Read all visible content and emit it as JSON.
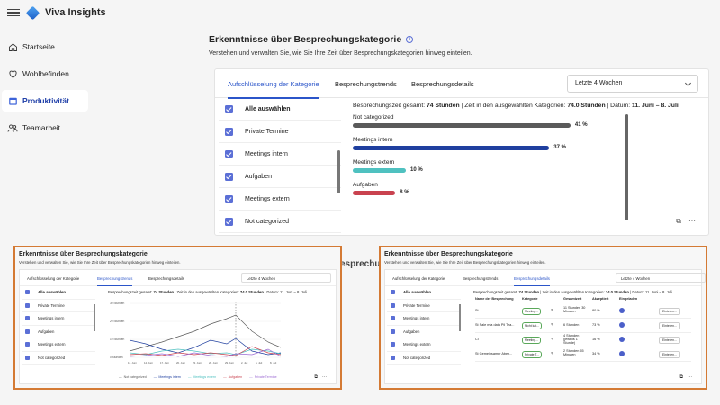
{
  "app": {
    "title": "Viva Insights"
  },
  "sidebar": {
    "items": [
      {
        "label": "Startseite",
        "icon": "home-icon",
        "active": false
      },
      {
        "label": "Wohlbefinden",
        "icon": "heart-icon",
        "active": false
      },
      {
        "label": "Produktivität",
        "icon": "calendar-icon",
        "active": true
      },
      {
        "label": "Teamarbeit",
        "icon": "people-icon",
        "active": false
      }
    ]
  },
  "main": {
    "title": "Erkenntnisse über Besprechungskategorie",
    "subtitle": "Verstehen und verwalten Sie, wie Sie Ihre Zeit über Besprechungskategorien hinweg einteilen.",
    "tabs": [
      {
        "label": "Aufschlüsselung der Kategorie",
        "active": true
      },
      {
        "label": "Besprechungstrends",
        "active": false
      },
      {
        "label": "Besprechungsdetails",
        "active": false
      }
    ],
    "period": "Letzte 4 Wochen",
    "categories": [
      "Alle auswählen",
      "Private Termine",
      "Meetings intern",
      "Aufgaben",
      "Meetings extern",
      "Not categorized"
    ],
    "summary": {
      "total_label": "Besprechungszeit gesamt:",
      "total_value": "74 Stunden",
      "selected_label": "Zeit in den ausgewählten Kategorien:",
      "selected_value": "74.0 Stunden",
      "date_label": "Datum:",
      "date_value": "11. Juni – 8. Juli"
    }
  },
  "chart_data": {
    "type": "bar",
    "orientation": "horizontal",
    "categories": [
      "Not categorized",
      "Meetings intern",
      "Meetings extern",
      "Aufgaben"
    ],
    "values": [
      41,
      37,
      10,
      8
    ],
    "value_labels": [
      "41 %",
      "37 %",
      "10 %",
      "8 %"
    ],
    "colors": [
      "#5a5a5a",
      "#1f3f9f",
      "#4fc1c0",
      "#c9424f"
    ],
    "xlim": [
      0,
      100
    ]
  },
  "overlay_label": "esprechu",
  "thumb_left": {
    "title": "Erkenntnisse über Besprechungskategorie",
    "subtitle": "Verstehen und verwalten Sie, wie Sie Ihre Zeit über Besprechungskategorien hinweg einteilen.",
    "tabs": [
      "Aufschlüsselung der Kategorie",
      "Besprechungstrends",
      "Besprechungsdetails"
    ],
    "active_tab": 1,
    "period": "Letzte 4 Wochen",
    "categories": [
      "Alle auswählen",
      "Private Termine",
      "Meetings intern",
      "Aufgaben",
      "Meetings extern",
      "Not categorized"
    ],
    "summary_a": "Besprechungszeit gesamt:",
    "summary_b": "74 Stunden",
    "summary_c": "| Zeit in den ausgewählten Kategorien:",
    "summary_d": "74.0 Stunden",
    "summary_e": "| Datum: 11. Juni – 8. Juli",
    "legend": [
      "Not categorized",
      "Meetings intern",
      "Meetings extern",
      "Aufgaben",
      "Private Termine"
    ],
    "y_ticks": [
      "30 Stunden",
      "20 Stunden",
      "10 Stunden",
      "0 Stunden"
    ],
    "x_ticks": [
      "11. Juni",
      "14. Juni",
      "17. Juni",
      "20. Juni",
      "23. Juni",
      "26. Juni",
      "29. Juni",
      "2. Juli",
      "5. Juli",
      "8. Juli"
    ]
  },
  "thumb_right": {
    "title": "Erkenntnisse über Besprechungskategorie",
    "subtitle": "Verstehen und verwalten Sie, wie Sie Ihre Zeit über Besprechungskategorien hinweg einteilen.",
    "tabs": [
      "Aufschlüsselung der Kategorie",
      "Besprechungstrends",
      "Besprechungsdetails"
    ],
    "active_tab": 2,
    "period": "Letzte 4 Wochen",
    "categories": [
      "Alle auswählen",
      "Private Termine",
      "Meetings intern",
      "Aufgaben",
      "Meetings extern",
      "Not categorized"
    ],
    "summary_a": "Besprechungszeit gesamt:",
    "summary_b": "74 Stunden",
    "summary_c": "| Zeit in den ausgewählten Kategorien:",
    "summary_d": "74.0 Stunden",
    "summary_e": "| Datum: 11. Juni – 8. Juli",
    "columns": [
      "Name der Besprechung",
      "Kategorie",
      "",
      "Gesamtzeit",
      "Akzeptiert",
      "Eingeladen"
    ],
    "rows": [
      {
        "name": "St",
        "category": "Meeting...",
        "time": "11 Stunden 30 Minuten",
        "acc": "80 %",
        "btn": "Einteilen..."
      },
      {
        "name": "St Sale mia data Pil Tea...",
        "category": "Nicht kat...",
        "time": "6 Stunden",
        "acc": "73 %",
        "btn": "Einteilen..."
      },
      {
        "name": "Cl",
        "category": "Meeting...",
        "time": "4 Stunden (jeweils 1 Stunde)",
        "acc": "16 %",
        "btn": "Einteilen..."
      },
      {
        "name": "St Gemeinsamer Aben...",
        "category": "Private T...",
        "time": "2 Stunden 55 Minuten",
        "acc": "34 %",
        "btn": "Einteilen..."
      }
    ]
  }
}
